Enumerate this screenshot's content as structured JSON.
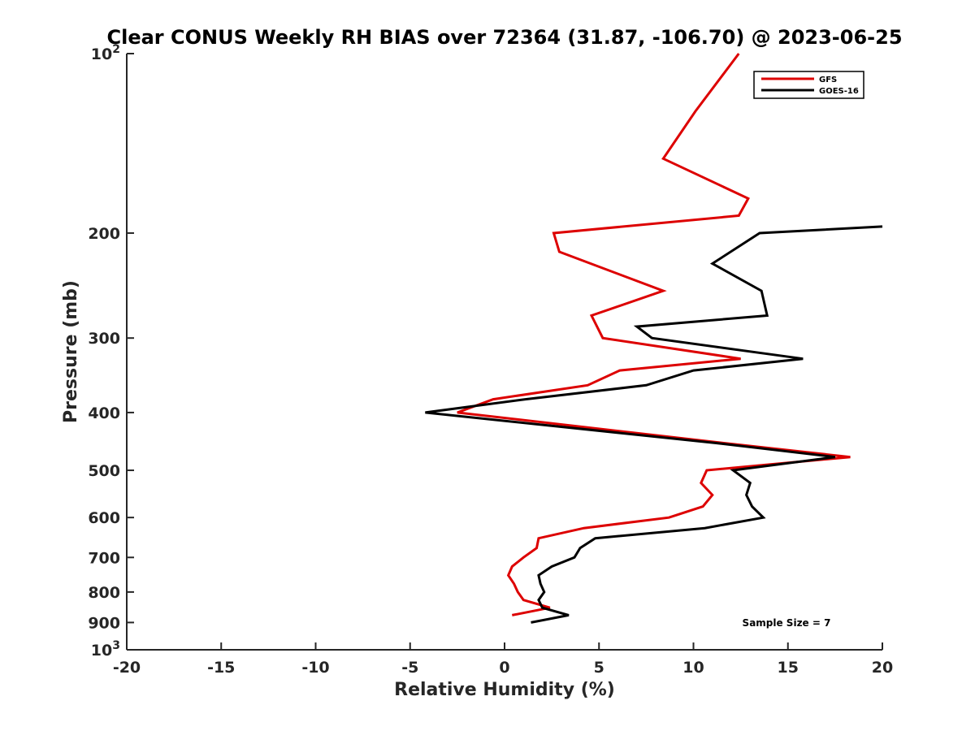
{
  "chart_data": {
    "type": "line",
    "title": "Clear CONUS Weekly RH BIAS over 72364 (31.87, -106.70) @ 2023-06-25",
    "xlabel": "Relative Humidity (%)",
    "ylabel": "Pressure (mb)",
    "xlim": [
      -20,
      20
    ],
    "ylim": [
      100,
      1000
    ],
    "y_scale": "log",
    "y_reversed": true,
    "grid": false,
    "legend_position": "top-right",
    "x_ticks": [
      -20,
      -15,
      -10,
      -5,
      0,
      5,
      10,
      15,
      20
    ],
    "x_tick_labels": [
      "-20",
      "-15",
      "-10",
      "-5",
      "0",
      "5",
      "10",
      "15",
      "20"
    ],
    "y_ticks": [
      100,
      200,
      300,
      400,
      500,
      600,
      700,
      800,
      900,
      1000
    ],
    "y_tick_labels": [
      {
        "base": "10",
        "exp": "2"
      },
      {
        "base": "200",
        "exp": ""
      },
      {
        "base": "300",
        "exp": ""
      },
      {
        "base": "400",
        "exp": ""
      },
      {
        "base": "500",
        "exp": ""
      },
      {
        "base": "600",
        "exp": ""
      },
      {
        "base": "700",
        "exp": ""
      },
      {
        "base": "800",
        "exp": ""
      },
      {
        "base": "900",
        "exp": ""
      },
      {
        "base": "10",
        "exp": "3"
      }
    ],
    "series": [
      {
        "name": "GFS",
        "color": "#dd0000",
        "points": [
          [
            12.4,
            100
          ],
          [
            10.1,
            125
          ],
          [
            8.4,
            150
          ],
          [
            12.9,
            175
          ],
          [
            12.4,
            187
          ],
          [
            2.6,
            200
          ],
          [
            2.9,
            215
          ],
          [
            8.4,
            250
          ],
          [
            4.6,
            275
          ],
          [
            5.2,
            300
          ],
          [
            12.5,
            325
          ],
          [
            6.1,
            340
          ],
          [
            4.4,
            360
          ],
          [
            -0.6,
            380
          ],
          [
            -2.5,
            400
          ],
          [
            11.6,
            450
          ],
          [
            18.3,
            475
          ],
          [
            10.7,
            500
          ],
          [
            10.4,
            525
          ],
          [
            11.0,
            550
          ],
          [
            10.5,
            575
          ],
          [
            8.7,
            600
          ],
          [
            4.2,
            625
          ],
          [
            1.8,
            650
          ],
          [
            1.7,
            675
          ],
          [
            1.0,
            700
          ],
          [
            0.4,
            725
          ],
          [
            0.2,
            750
          ],
          [
            0.5,
            775
          ],
          [
            0.7,
            800
          ],
          [
            1.0,
            825
          ],
          [
            2.4,
            850
          ],
          [
            0.4,
            875
          ]
        ]
      },
      {
        "name": "GOES-16",
        "color": "#000000",
        "points": [
          [
            20.0,
            195
          ],
          [
            13.5,
            200
          ],
          [
            11.0,
            225
          ],
          [
            13.6,
            250
          ],
          [
            13.9,
            275
          ],
          [
            7.0,
            287
          ],
          [
            7.8,
            300
          ],
          [
            15.8,
            325
          ],
          [
            10.0,
            340
          ],
          [
            7.5,
            360
          ],
          [
            1.1,
            380
          ],
          [
            -4.2,
            400
          ],
          [
            11.2,
            450
          ],
          [
            17.5,
            475
          ],
          [
            12.1,
            500
          ],
          [
            13.0,
            525
          ],
          [
            12.8,
            550
          ],
          [
            13.1,
            575
          ],
          [
            13.7,
            600
          ],
          [
            10.6,
            625
          ],
          [
            4.8,
            650
          ],
          [
            4.0,
            675
          ],
          [
            3.7,
            700
          ],
          [
            2.5,
            725
          ],
          [
            1.8,
            750
          ],
          [
            1.9,
            775
          ],
          [
            2.1,
            800
          ],
          [
            1.8,
            825
          ],
          [
            2.0,
            850
          ],
          [
            3.4,
            875
          ],
          [
            1.4,
            900
          ]
        ]
      }
    ],
    "annotations": [
      "Sample Size = 7"
    ]
  }
}
